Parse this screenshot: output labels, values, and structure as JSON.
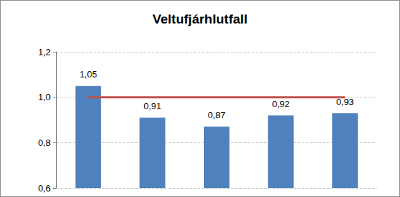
{
  "chart_data": {
    "type": "bar",
    "title": "Veltufjárhlutfall",
    "categories": [
      null,
      null,
      null,
      null,
      null
    ],
    "series": [
      {
        "type": "bar",
        "color": "#4f81bd",
        "values": [
          1.05,
          0.91,
          0.87,
          0.92,
          0.93
        ],
        "value_labels": [
          "1,05",
          "0,91",
          "0,87",
          "0,92",
          "0,93"
        ],
        "data_labels": true
      },
      {
        "type": "line",
        "color": "#c0504d",
        "values": [
          1.0,
          1.0,
          1.0,
          1.0,
          1.0
        ],
        "marker": "none"
      }
    ],
    "ylim": [
      0.6,
      1.2
    ],
    "yticks": [
      {
        "value": 0.6,
        "label": "0,6"
      },
      {
        "value": 0.8,
        "label": "0,8"
      },
      {
        "value": 1.0,
        "label": "1,0"
      },
      {
        "value": 1.2,
        "label": "1,2"
      }
    ],
    "grid": true
  }
}
